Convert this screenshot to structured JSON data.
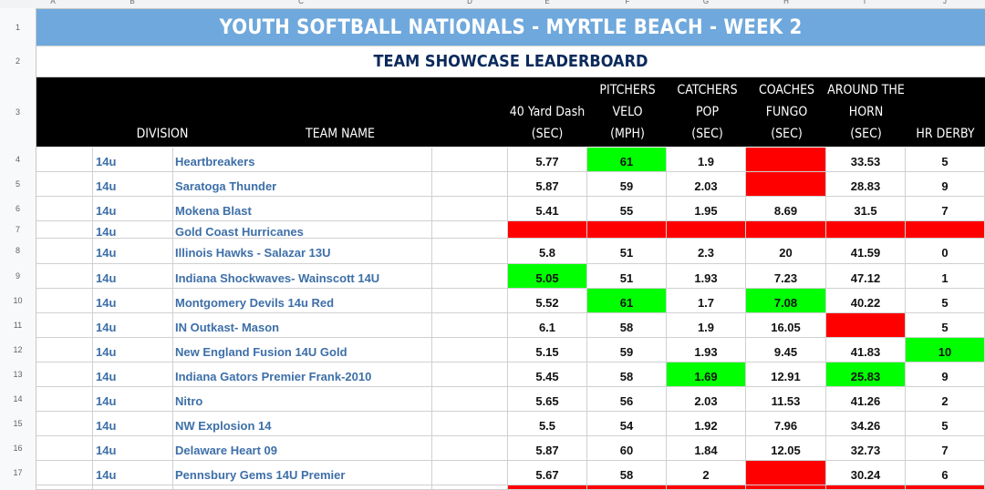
{
  "sheet": {
    "title": "YOUTH SOFTBALL NATIONALS - MYRTLE BEACH - WEEK 2",
    "subtitle": "TEAM SHOWCASE LEADERBOARD",
    "column_letters": [
      "A",
      "B",
      "C",
      "D",
      "E",
      "F",
      "G",
      "H",
      "I",
      "J"
    ],
    "row_numbers": [
      "1",
      "2",
      "3",
      "4",
      "5",
      "6",
      "7",
      "8",
      "9",
      "10",
      "11",
      "12",
      "13",
      "14",
      "15",
      "16",
      "17"
    ],
    "headers": {
      "division": "DIVISION",
      "team_name": "TEAM NAME",
      "dash": [
        "",
        "40 Yard Dash",
        "(SEC)"
      ],
      "velo": [
        "PITCHERS",
        "VELO",
        "(MPH)"
      ],
      "pop": [
        "CATCHERS",
        "POP",
        "(SEC)"
      ],
      "fungo": [
        "COACHES",
        "FUNGO",
        "(SEC)"
      ],
      "horn": [
        "AROUND THE",
        "HORN",
        "(SEC)"
      ],
      "derby": [
        "",
        "",
        "HR DERBY"
      ]
    },
    "colors": {
      "title_bg": "#6fa8dc",
      "subtitle_text": "#0b2a5c",
      "team_text": "#3d6fa8",
      "highlight_green": "#00ff00",
      "highlight_red": "#ff0000"
    },
    "rows": [
      {
        "division": "14u",
        "team": "Heartbreakers",
        "dash": "5.77",
        "velo": "61",
        "pop": "1.9",
        "fungo": "",
        "horn": "33.53",
        "derby": "5",
        "fill": {
          "velo": "green",
          "fungo": "red"
        }
      },
      {
        "division": "14u",
        "team": "Saratoga Thunder",
        "dash": "5.87",
        "velo": "59",
        "pop": "2.03",
        "fungo": "",
        "horn": "28.83",
        "derby": "9",
        "fill": {
          "fungo": "red"
        }
      },
      {
        "division": "14u",
        "team": "Mokena Blast",
        "dash": "5.41",
        "velo": "55",
        "pop": "1.95",
        "fungo": "8.69",
        "horn": "31.5",
        "derby": "7",
        "fill": {}
      },
      {
        "division": "14u",
        "team": "Gold Coast Hurricanes",
        "dash": "",
        "velo": "",
        "pop": "",
        "fungo": "",
        "horn": "",
        "derby": "",
        "fill": {
          "dash": "red",
          "velo": "red",
          "pop": "red",
          "fungo": "red",
          "horn": "red",
          "derby": "red"
        }
      },
      {
        "division": "14u",
        "team": "Illinois Hawks - Salazar 13U",
        "dash": "5.8",
        "velo": "51",
        "pop": "2.3",
        "fungo": "20",
        "horn": "41.59",
        "derby": "0",
        "fill": {}
      },
      {
        "division": "14u",
        "team": "Indiana Shockwaves- Wainscott 14U",
        "dash": "5.05",
        "velo": "51",
        "pop": "1.93",
        "fungo": "7.23",
        "horn": "47.12",
        "derby": "1",
        "fill": {
          "dash": "green"
        }
      },
      {
        "division": "14u",
        "team": "Montgomery Devils 14u Red",
        "dash": "5.52",
        "velo": "61",
        "pop": "1.7",
        "fungo": "7.08",
        "horn": "40.22",
        "derby": "5",
        "fill": {
          "velo": "green",
          "fungo": "green"
        }
      },
      {
        "division": "14u",
        "team": "IN Outkast- Mason",
        "dash": "6.1",
        "velo": "58",
        "pop": "1.9",
        "fungo": "16.05",
        "horn": "",
        "derby": "5",
        "fill": {
          "horn": "red"
        }
      },
      {
        "division": "14u",
        "team": "New England Fusion 14U Gold",
        "dash": "5.15",
        "velo": "59",
        "pop": "1.93",
        "fungo": "9.45",
        "horn": "41.83",
        "derby": "10",
        "fill": {
          "derby": "green"
        }
      },
      {
        "division": "14u",
        "team": "Indiana Gators Premier Frank-2010",
        "dash": "5.45",
        "velo": "58",
        "pop": "1.69",
        "fungo": "12.91",
        "horn": "25.83",
        "derby": "9",
        "fill": {
          "pop": "green",
          "horn": "green"
        }
      },
      {
        "division": "14u",
        "team": "Nitro",
        "dash": "5.65",
        "velo": "56",
        "pop": "2.03",
        "fungo": "11.53",
        "horn": "41.26",
        "derby": "2",
        "fill": {}
      },
      {
        "division": "14u",
        "team": "NW Explosion 14",
        "dash": "5.5",
        "velo": "54",
        "pop": "1.92",
        "fungo": "7.96",
        "horn": "34.26",
        "derby": "5",
        "fill": {}
      },
      {
        "division": "14u",
        "team": "Delaware Heart 09",
        "dash": "5.87",
        "velo": "60",
        "pop": "1.84",
        "fungo": "12.05",
        "horn": "32.73",
        "derby": "7",
        "fill": {}
      },
      {
        "division": "14u",
        "team": "Pennsbury Gems 14U Premier",
        "dash": "5.67",
        "velo": "58",
        "pop": "2",
        "fungo": "",
        "horn": "30.24",
        "derby": "6",
        "fill": {
          "fungo": "red"
        }
      }
    ]
  }
}
